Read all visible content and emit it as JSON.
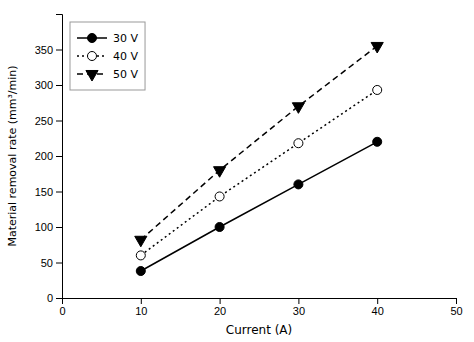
{
  "chart_data": {
    "type": "line",
    "x_label": "Current (A)",
    "y_label": "Material removal rate (mm³/min)",
    "x": [
      10,
      20,
      30,
      40
    ],
    "series": [
      {
        "name": "30 V",
        "color": "black",
        "marker": "circle",
        "line_style": "solid",
        "values": [
          38,
          100,
          160,
          220
        ]
      },
      {
        "name": "40 V",
        "color": "black",
        "marker": "circle-open",
        "line_style": "dotted",
        "values": [
          60,
          143,
          218,
          293
        ]
      },
      {
        "name": "50 V",
        "color": "black",
        "marker": "triangle-down",
        "line_style": "dashed",
        "values": [
          82,
          180,
          270,
          355
        ]
      }
    ],
    "xlim": [
      0,
      50
    ],
    "ylim": [
      0,
      400
    ],
    "xticks": [
      0,
      10,
      20,
      30,
      40,
      50
    ],
    "yticks": [
      0,
      50,
      100,
      150,
      200,
      250,
      300,
      350
    ],
    "grid": false,
    "legend": "upper left"
  }
}
